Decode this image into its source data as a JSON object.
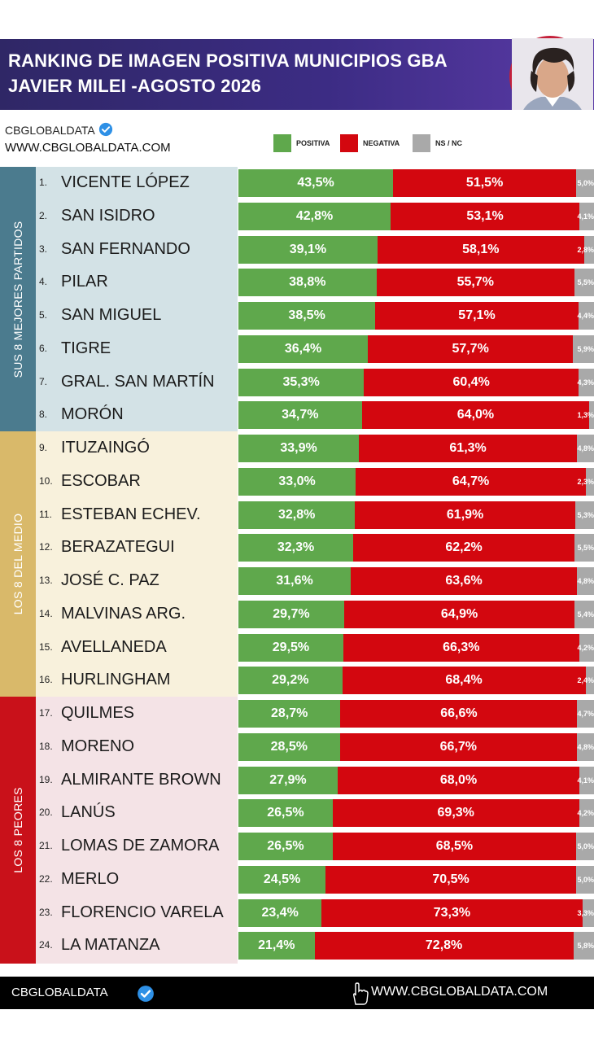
{
  "header": {
    "title_line1": "RANKING DE IMAGEN POSITIVA MUNICIPIOS GBA",
    "title_line2": "JAVIER MILEI -AGOSTO 2026"
  },
  "brand": {
    "name": "CBGLOBALDATA",
    "url": "WWW.CBGLOBALDATA.COM"
  },
  "legend": [
    {
      "label": "POSITIVA",
      "color": "#5fa84c"
    },
    {
      "label": "NEGATIVA",
      "color": "#d3070f"
    },
    {
      "label": "NS / NC",
      "color": "#a9a9a9"
    }
  ],
  "groups": [
    {
      "label": "SUS 8 MEJORES PARTIDOS",
      "band_color": "#4b7b8e",
      "row_bg": "#d3e2e6"
    },
    {
      "label": "LOS 8 DEL MEDIO",
      "band_color": "#d9b96a",
      "row_bg": "#f8f1dc"
    },
    {
      "label": "LOS 8 PEORES",
      "band_color": "#c9111a",
      "row_bg": "#f4e3e6"
    }
  ],
  "chart_data": {
    "type": "bar",
    "orientation": "horizontal-stacked",
    "title": "RANKING DE IMAGEN POSITIVA MUNICIPIOS GBA",
    "subtitle": "JAVIER MILEI -AGOSTO 2026",
    "series": [
      {
        "name": "POSITIVA",
        "color": "#5fa84c"
      },
      {
        "name": "NEGATIVA",
        "color": "#d3070f"
      },
      {
        "name": "NS / NC",
        "color": "#a9a9a9"
      }
    ],
    "rows": [
      {
        "rank": "1.",
        "name": "VICENTE LÓPEZ",
        "pos": 43.5,
        "neg": 51.5,
        "ns": 5.0,
        "pos_label": "43,5%",
        "neg_label": "51,5%",
        "ns_label": "5,0%"
      },
      {
        "rank": "2.",
        "name": "SAN ISIDRO",
        "pos": 42.8,
        "neg": 53.1,
        "ns": 4.1,
        "pos_label": "42,8%",
        "neg_label": "53,1%",
        "ns_label": "4,1%"
      },
      {
        "rank": "3.",
        "name": "SAN FERNANDO",
        "pos": 39.1,
        "neg": 58.1,
        "ns": 2.8,
        "pos_label": "39,1%",
        "neg_label": "58,1%",
        "ns_label": "2,8%"
      },
      {
        "rank": "4.",
        "name": "PILAR",
        "pos": 38.8,
        "neg": 55.7,
        "ns": 5.5,
        "pos_label": "38,8%",
        "neg_label": "55,7%",
        "ns_label": "5,5%"
      },
      {
        "rank": "5.",
        "name": "SAN MIGUEL",
        "pos": 38.5,
        "neg": 57.1,
        "ns": 4.4,
        "pos_label": "38,5%",
        "neg_label": "57,1%",
        "ns_label": "4,4%"
      },
      {
        "rank": "6.",
        "name": "TIGRE",
        "pos": 36.4,
        "neg": 57.7,
        "ns": 5.9,
        "pos_label": "36,4%",
        "neg_label": "57,7%",
        "ns_label": "5,9%"
      },
      {
        "rank": "7.",
        "name": "GRAL. SAN MARTÍN",
        "pos": 35.3,
        "neg": 60.4,
        "ns": 4.3,
        "pos_label": "35,3%",
        "neg_label": "60,4%",
        "ns_label": "4,3%"
      },
      {
        "rank": "8.",
        "name": "MORÓN",
        "pos": 34.7,
        "neg": 64.0,
        "ns": 1.3,
        "pos_label": "34,7%",
        "neg_label": "64,0%",
        "ns_label": "1,3%"
      },
      {
        "rank": "9.",
        "name": "ITUZAINGÓ",
        "pos": 33.9,
        "neg": 61.3,
        "ns": 4.8,
        "pos_label": "33,9%",
        "neg_label": "61,3%",
        "ns_label": "4,8%"
      },
      {
        "rank": "10.",
        "name": "ESCOBAR",
        "pos": 33.0,
        "neg": 64.7,
        "ns": 2.3,
        "pos_label": "33,0%",
        "neg_label": "64,7%",
        "ns_label": "2,3%"
      },
      {
        "rank": "11.",
        "name": "ESTEBAN ECHEV.",
        "pos": 32.8,
        "neg": 61.9,
        "ns": 5.3,
        "pos_label": "32,8%",
        "neg_label": "61,9%",
        "ns_label": "5,3%"
      },
      {
        "rank": "12.",
        "name": "BERAZATEGUI",
        "pos": 32.3,
        "neg": 62.2,
        "ns": 5.5,
        "pos_label": "32,3%",
        "neg_label": "62,2%",
        "ns_label": "5,5%"
      },
      {
        "rank": "13.",
        "name": "JOSÉ C. PAZ",
        "pos": 31.6,
        "neg": 63.6,
        "ns": 4.8,
        "pos_label": "31,6%",
        "neg_label": "63,6%",
        "ns_label": "4,8%"
      },
      {
        "rank": "14.",
        "name": "MALVINAS ARG.",
        "pos": 29.7,
        "neg": 64.9,
        "ns": 5.4,
        "pos_label": "29,7%",
        "neg_label": "64,9%",
        "ns_label": "5,4%"
      },
      {
        "rank": "15.",
        "name": "AVELLANEDA",
        "pos": 29.5,
        "neg": 66.3,
        "ns": 4.2,
        "pos_label": "29,5%",
        "neg_label": "66,3%",
        "ns_label": "4,2%"
      },
      {
        "rank": "16.",
        "name": "HURLINGHAM",
        "pos": 29.2,
        "neg": 68.4,
        "ns": 2.4,
        "pos_label": "29,2%",
        "neg_label": "68,4%",
        "ns_label": "2,4%"
      },
      {
        "rank": "17.",
        "name": "QUILMES",
        "pos": 28.7,
        "neg": 66.6,
        "ns": 4.7,
        "pos_label": "28,7%",
        "neg_label": "66,6%",
        "ns_label": "4,7%"
      },
      {
        "rank": "18.",
        "name": "MORENO",
        "pos": 28.5,
        "neg": 66.7,
        "ns": 4.8,
        "pos_label": "28,5%",
        "neg_label": "66,7%",
        "ns_label": "4,8%"
      },
      {
        "rank": "19.",
        "name": "ALMIRANTE BROWN",
        "pos": 27.9,
        "neg": 68.0,
        "ns": 4.1,
        "pos_label": "27,9%",
        "neg_label": "68,0%",
        "ns_label": "4,1%"
      },
      {
        "rank": "20.",
        "name": "LANÚS",
        "pos": 26.5,
        "neg": 69.3,
        "ns": 4.2,
        "pos_label": "26,5%",
        "neg_label": "69,3%",
        "ns_label": "4,2%"
      },
      {
        "rank": "21.",
        "name": "LOMAS DE ZAMORA",
        "pos": 26.5,
        "neg": 68.5,
        "ns": 5.0,
        "pos_label": "26,5%",
        "neg_label": "68,5%",
        "ns_label": "5,0%"
      },
      {
        "rank": "22.",
        "name": "MERLO",
        "pos": 24.5,
        "neg": 70.5,
        "ns": 5.0,
        "pos_label": "24,5%",
        "neg_label": "70,5%",
        "ns_label": "5,0%"
      },
      {
        "rank": "23.",
        "name": "FLORENCIO VARELA",
        "pos": 23.4,
        "neg": 73.3,
        "ns": 3.3,
        "pos_label": "23,4%",
        "neg_label": "73,3%",
        "ns_label": "3,3%"
      },
      {
        "rank": "24.",
        "name": "LA MATANZA",
        "pos": 21.4,
        "neg": 72.8,
        "ns": 5.8,
        "pos_label": "21,4%",
        "neg_label": "72,8%",
        "ns_label": "5,8%"
      }
    ],
    "xlim": [
      0,
      100
    ],
    "grid": false,
    "legend_position": "top"
  },
  "footer": {
    "brand": "CBGLOBALDATA",
    "url": "WWW.CBGLOBALDATA.COM"
  }
}
